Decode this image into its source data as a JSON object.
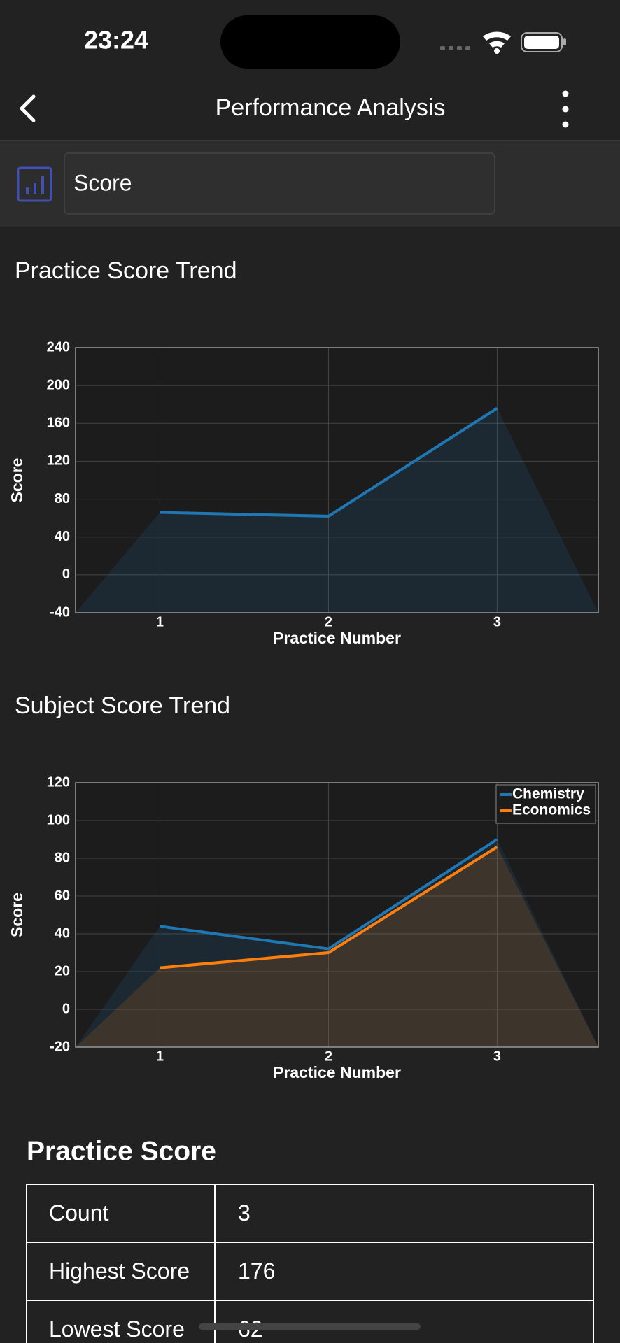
{
  "status_bar": {
    "time": "23:24"
  },
  "header": {
    "title": "Performance Analysis"
  },
  "selector": {
    "value": "Score"
  },
  "chart_data": [
    {
      "type": "area",
      "title": "Practice Score Trend",
      "x_label": "Practice Number",
      "y_label": "Score",
      "x": [
        1,
        2,
        3
      ],
      "values": [
        66,
        62,
        176
      ],
      "color": "#1f77b4",
      "xlim": [
        0.5,
        3.6
      ],
      "ylim": [
        -40,
        240
      ],
      "xticks": [
        1,
        2,
        3
      ],
      "yticks": [
        -40,
        0,
        40,
        80,
        120,
        160,
        200,
        240
      ],
      "grid": true
    },
    {
      "type": "area",
      "title": "Subject Score Trend",
      "x_label": "Practice Number",
      "y_label": "Score",
      "x": [
        1,
        2,
        3
      ],
      "series": [
        {
          "name": "Chemistry",
          "color": "#1f77b4",
          "values": [
            44,
            32,
            90
          ]
        },
        {
          "name": "Economics",
          "color": "#ff7f0e",
          "values": [
            22,
            30,
            86
          ]
        }
      ],
      "xlim": [
        0.5,
        3.6
      ],
      "ylim": [
        -20,
        120
      ],
      "xticks": [
        1,
        2,
        3
      ],
      "yticks": [
        -20,
        0,
        20,
        40,
        60,
        80,
        100,
        120
      ],
      "grid": true,
      "legend": "upper right"
    }
  ],
  "table": {
    "title": "Practice Score",
    "rows": [
      [
        "Count",
        3
      ],
      [
        "Highest Score",
        176
      ],
      [
        "Lowest Score",
        62
      ]
    ]
  }
}
